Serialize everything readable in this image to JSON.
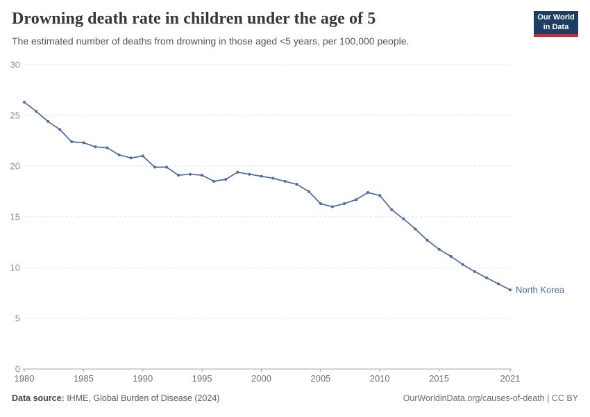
{
  "header": {
    "title": "Drowning death rate in children under the age of 5",
    "subtitle": "The estimated number of deaths from drowning in those aged <5 years, per 100,000 people.",
    "logo": {
      "line1": "Our World",
      "line2": "in Data",
      "bg_color": "#1d3d63",
      "accent_color": "#e0232e"
    }
  },
  "chart_data": {
    "type": "line",
    "title": "Drowning death rate in children under the age of 5",
    "xlabel": "",
    "ylabel": "",
    "x": [
      1980,
      1981,
      1982,
      1983,
      1984,
      1985,
      1986,
      1987,
      1988,
      1989,
      1990,
      1991,
      1992,
      1993,
      1994,
      1995,
      1996,
      1997,
      1998,
      1999,
      2000,
      2001,
      2002,
      2003,
      2004,
      2005,
      2006,
      2007,
      2008,
      2009,
      2010,
      2011,
      2012,
      2013,
      2014,
      2015,
      2016,
      2017,
      2018,
      2019,
      2020,
      2021
    ],
    "series": [
      {
        "name": "North Korea",
        "color": "#4c6a9c",
        "values": [
          26.3,
          25.4,
          24.4,
          23.6,
          22.4,
          22.3,
          21.9,
          21.8,
          21.1,
          20.8,
          21.0,
          19.9,
          19.9,
          19.1,
          19.2,
          19.1,
          18.5,
          18.7,
          19.4,
          19.2,
          19.0,
          18.8,
          18.5,
          18.2,
          17.5,
          16.3,
          16.0,
          16.3,
          16.7,
          17.4,
          17.1,
          15.7,
          14.8,
          13.8,
          12.7,
          11.8,
          11.1,
          10.3,
          9.6,
          9.0,
          8.4,
          7.8
        ]
      }
    ],
    "xlim": [
      1980,
      2021
    ],
    "ylim": [
      0,
      30
    ],
    "xticks": [
      1980,
      1985,
      1990,
      1995,
      2000,
      2005,
      2010,
      2015,
      2021
    ],
    "yticks": [
      0,
      5,
      10,
      15,
      20,
      25,
      30
    ],
    "grid": "horizontal-dashed",
    "legend_position": "end-of-line-label",
    "colors": {
      "grid": "#dcdcdc",
      "axis": "#a3a3a3",
      "y_tick_label": "#8c8c8c",
      "x_tick_label": "#6e6e6e"
    }
  },
  "footer": {
    "source_label": "Data source:",
    "source_text": " IHME, Global Burden of Disease (2024)",
    "credit": "OurWorldinData.org/causes-of-death | CC BY"
  }
}
